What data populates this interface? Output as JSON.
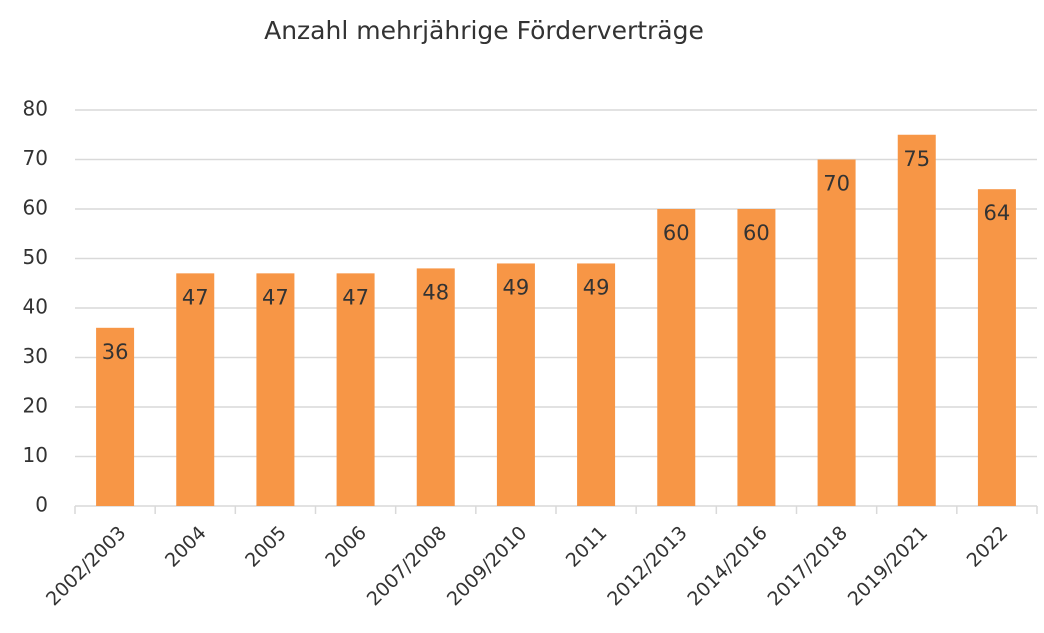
{
  "chart_data": {
    "type": "bar",
    "title": "Anzahl mehrjährige Förderverträge",
    "categories": [
      "2002/2003",
      "2004",
      "2005",
      "2006",
      "2007/2008",
      "2009/2010",
      "2011",
      "2012/2013",
      "2014/2016",
      "2017/2018",
      "2019/2021",
      "2022"
    ],
    "values": [
      36,
      47,
      47,
      47,
      48,
      49,
      49,
      60,
      60,
      70,
      75,
      64
    ],
    "color": "#f79646",
    "ylim": [
      0,
      80
    ],
    "yticks": [
      0,
      10,
      20,
      30,
      40,
      50,
      60,
      70,
      80
    ],
    "grid": true
  }
}
